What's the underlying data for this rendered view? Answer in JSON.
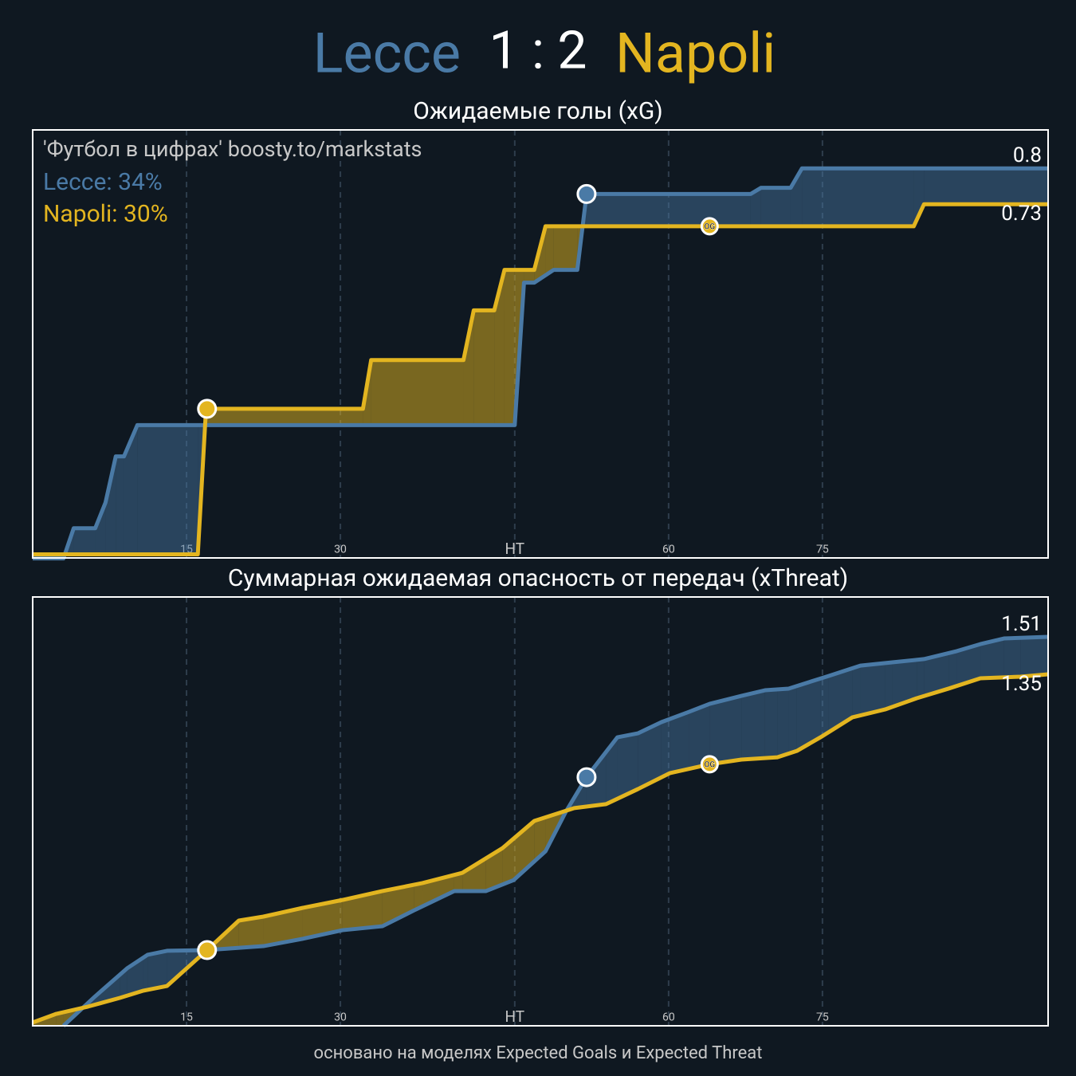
{
  "header": {
    "home": "Lecce",
    "score": "1 : 2",
    "away": "Napoli"
  },
  "footer": "основано на моделях Expected Goals и Expected Threat",
  "watermark": "'Футбол в цифрах' boosty.to/markstats",
  "chart_data": [
    {
      "type": "line",
      "title": "Ожидаемые голы (xG)",
      "xlim": [
        0,
        99
      ],
      "xticks": [
        15,
        30,
        {
          "value": 47,
          "label": "HT"
        },
        {
          "value": 62,
          "label": "60"
        },
        {
          "value": 77,
          "label": "75"
        }
      ],
      "ylim": [
        0.04,
        0.875
      ],
      "series": [
        {
          "name": "Lecce",
          "legend_label": "Lecce: 34%",
          "color": "#4a7aa6",
          "x": [
            0,
            3.0,
            4.0,
            6.1,
            7.1,
            8.1,
            8.9,
            10.2,
            47.0,
            47.9,
            48.9,
            50.8,
            53.1,
            54.0,
            70.0,
            71.0,
            73.9,
            75.0,
            99
          ],
          "values": [
            0.039,
            0.039,
            0.098,
            0.098,
            0.148,
            0.238,
            0.238,
            0.299,
            0.299,
            0.577,
            0.577,
            0.602,
            0.602,
            0.75,
            0.75,
            0.762,
            0.762,
            0.8,
            0.8
          ]
        },
        {
          "name": "Napoli",
          "legend_label": "Napoli: 30%",
          "color": "#e3b520",
          "x": [
            0,
            0.85,
            16.1,
            16.9,
            32.2,
            33.0,
            42.0,
            43.0,
            45.0,
            46.0,
            48.9,
            50.0,
            85.9,
            86.9,
            99
          ],
          "values": [
            0.047,
            0.047,
            0.047,
            0.331,
            0.331,
            0.426,
            0.426,
            0.523,
            0.523,
            0.602,
            0.602,
            0.687,
            0.687,
            0.73,
            0.73
          ]
        }
      ],
      "markers": [
        {
          "x": 17,
          "y": 0.331,
          "color": "#e3b520"
        },
        {
          "x": 54,
          "y": 0.75,
          "color": "#4a7aa6"
        },
        {
          "x": 66,
          "y": 0.687,
          "color": "#e3b520",
          "label": "OG"
        }
      ]
    },
    {
      "type": "line",
      "title": "Суммарная ожидаемая опасность от передач (xThreat)",
      "xlim": [
        0,
        99
      ],
      "xticks": [
        15,
        30,
        {
          "value": 47,
          "label": "HT"
        },
        {
          "value": 62,
          "label": "60"
        },
        {
          "value": 77,
          "label": "75"
        }
      ],
      "ylim": [
        -0.15,
        1.68
      ],
      "series": [
        {
          "name": "Lecce",
          "color": "#4a7aa6",
          "x": [
            3.0,
            6.1,
            9.2,
            11.2,
            13.1,
            17.0,
            22.5,
            26.3,
            30.2,
            34.1,
            37.2,
            41.1,
            44.2,
            46.9,
            50.0,
            52.0,
            54.0,
            57.0,
            59.0,
            61.3,
            64.0,
            66.0,
            69.1,
            71.4,
            73.7,
            77.6,
            80.7,
            83.8,
            86.9,
            90.1,
            92.4,
            94.7,
            99
          ],
          "values": [
            -0.15,
            -0.024,
            0.095,
            0.153,
            0.17,
            0.173,
            0.19,
            0.221,
            0.258,
            0.275,
            0.343,
            0.425,
            0.425,
            0.472,
            0.595,
            0.765,
            0.911,
            1.081,
            1.098,
            1.146,
            1.19,
            1.224,
            1.258,
            1.282,
            1.289,
            1.343,
            1.387,
            1.401,
            1.415,
            1.449,
            1.479,
            1.503,
            1.51
          ]
        },
        {
          "name": "Napoli",
          "color": "#e3b520",
          "x": [
            0,
            2.3,
            5.4,
            8.5,
            10.8,
            13.1,
            17.0,
            20.1,
            22.5,
            26.3,
            30.2,
            34.1,
            38.0,
            41.9,
            45.8,
            48.9,
            52.8,
            55.9,
            59.0,
            62.1,
            66.0,
            69.1,
            72.6,
            74.5,
            76.8,
            79.9,
            83.1,
            86.2,
            89.3,
            92.4,
            96.3,
            99
          ],
          "values": [
            -0.136,
            -0.099,
            -0.068,
            -0.031,
            0.0,
            0.02,
            0.173,
            0.299,
            0.316,
            0.353,
            0.387,
            0.425,
            0.459,
            0.503,
            0.608,
            0.724,
            0.779,
            0.796,
            0.86,
            0.928,
            0.966,
            0.986,
            0.996,
            1.023,
            1.081,
            1.166,
            1.2,
            1.248,
            1.289,
            1.333,
            1.34,
            1.35
          ]
        }
      ],
      "markers": [
        {
          "x": 17,
          "y": 0.173,
          "color": "#e3b520"
        },
        {
          "x": 54,
          "y": 0.911,
          "color": "#4a7aa6"
        },
        {
          "x": 66,
          "y": 0.966,
          "color": "#e3b520",
          "label": "OG"
        }
      ]
    }
  ]
}
